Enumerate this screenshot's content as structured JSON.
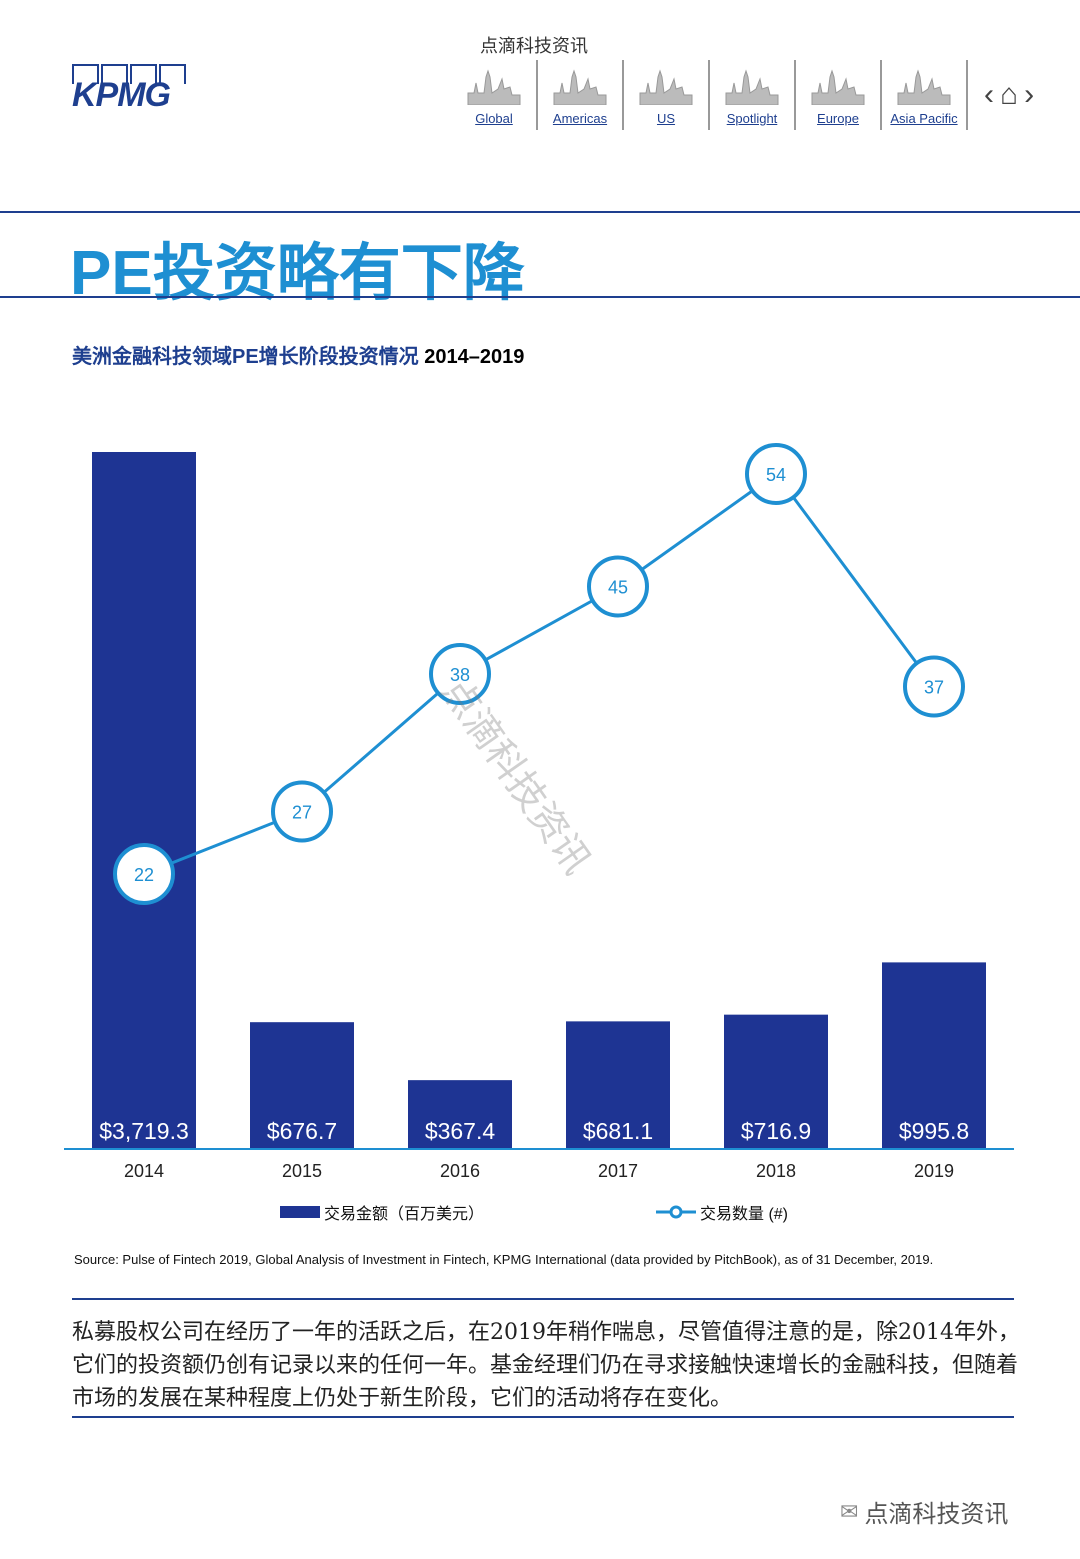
{
  "header": {
    "logo": "KPMG",
    "watermark": "点滴科技资讯",
    "nav": [
      {
        "label": "Global",
        "icon": "skyline-global-icon"
      },
      {
        "label": "Americas",
        "icon": "skyline-americas-icon"
      },
      {
        "label": "US",
        "icon": "skyline-us-icon"
      },
      {
        "label": "Spotlight",
        "icon": "spotlight-icon"
      },
      {
        "label": "Europe",
        "icon": "skyline-europe-icon"
      },
      {
        "label": "Asia Pacific",
        "icon": "skyline-asia-pacific-icon"
      }
    ],
    "prev": "‹",
    "home": "⌂",
    "next": "›"
  },
  "page_title": "PE投资略有下降",
  "chart_title": {
    "cn": "美洲金融科技领域PE增长阶段投资情况 ",
    "years": "2014–2019"
  },
  "chart_data": {
    "type": "bar",
    "categories": [
      "2014",
      "2015",
      "2016",
      "2017",
      "2018",
      "2019"
    ],
    "series": [
      {
        "name": "交易金额（百万美元）",
        "type": "bar",
        "values": [
          3719.3,
          676.7,
          367.4,
          681.1,
          716.9,
          995.8
        ],
        "labels": [
          "$3,719.3",
          "$676.7",
          "$367.4",
          "$681.1",
          "$716.9",
          "$995.8"
        ],
        "color": "#1e3493"
      },
      {
        "name": "交易数量 (#)",
        "type": "line",
        "values": [
          22,
          27,
          38,
          45,
          54,
          37
        ],
        "color": "#1e8fd2"
      }
    ],
    "legend": "bottom",
    "grid": false
  },
  "watermark_diag": "点滴科技资讯",
  "source": "Source: Pulse of Fintech 2019, Global Analysis of Investment in Fintech, KPMG International (data provided by PitchBook), as of 31 December, 2019.",
  "body_text": "私募股权公司在经历了一年的活跃之后，在2019年稍作喘息，尽管值得注意的是，除2014年外，它们的投资额仍创有记录以来的任何一年。基金经理们仍在寻求接触快速增长的金融科技，但随着市场的发展在某种程度上仍处于新生阶段，它们的活动将存在变化。",
  "footer_watermark": "点滴科技资讯"
}
